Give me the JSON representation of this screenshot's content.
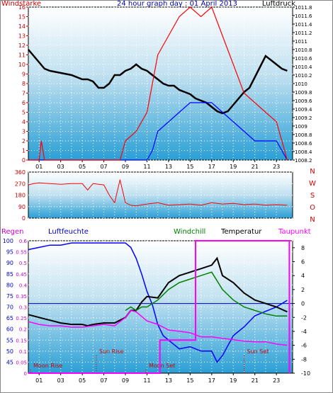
{
  "chart_data": [
    {
      "id": "wind-pressure",
      "type": "line",
      "title": "24 hour graph day : 01 April 2013",
      "left_label": "Windstärke",
      "right_label": "Luftdruck",
      "x_ticks": [
        "01",
        "03",
        "05",
        "07",
        "09",
        "11",
        "13",
        "15",
        "17",
        "19",
        "21",
        "23"
      ],
      "xlim": [
        0,
        24.5
      ],
      "left_axis": {
        "ylim": [
          0,
          16
        ],
        "ticks": [
          0,
          1,
          2,
          3,
          4,
          5,
          6,
          7,
          8,
          9,
          10,
          11,
          12,
          13,
          14,
          15,
          16
        ]
      },
      "right_axis": {
        "ylim": [
          1008.2,
          1011.8
        ],
        "ticks": [
          "1008.2",
          "1008.4",
          "1008.6",
          "1008.8",
          "1009",
          "1009.2",
          "1009.4",
          "1009.6",
          "1009.8",
          "1010",
          "1010.2",
          "1010.4",
          "1010.6",
          "1010.8",
          "1011",
          "1011.2",
          "1011.4",
          "1011.6",
          "1011.8"
        ]
      },
      "series": [
        {
          "color": "#000000",
          "axis": "right",
          "x": [
            0,
            0.5,
            1,
            1.5,
            2,
            3,
            4,
            5,
            5.5,
            6,
            6.5,
            7,
            7.5,
            8,
            8.5,
            9,
            9.5,
            10,
            10.5,
            11,
            11.5,
            12,
            12.5,
            13,
            13.5,
            14,
            14.5,
            15,
            15.5,
            16,
            16.5,
            17,
            17.5,
            18,
            18.5,
            19,
            19.5,
            20,
            20.5,
            21,
            21.5,
            22,
            22.5,
            23,
            23.5,
            24
          ],
          "y": [
            1010.8,
            1010.65,
            1010.5,
            1010.35,
            1010.3,
            1010.25,
            1010.2,
            1010.1,
            1010.1,
            1010.05,
            1009.9,
            1009.9,
            1010.0,
            1010.2,
            1010.2,
            1010.3,
            1010.35,
            1010.45,
            1010.35,
            1010.3,
            1010.2,
            1010.1,
            1010.0,
            1009.95,
            1009.95,
            1009.85,
            1009.8,
            1009.75,
            1009.65,
            1009.6,
            1009.55,
            1009.45,
            1009.35,
            1009.3,
            1009.35,
            1009.5,
            1009.65,
            1009.8,
            1009.9,
            1010.15,
            1010.4,
            1010.65,
            1010.55,
            1010.45,
            1010.35,
            1010.3
          ]
        },
        {
          "color": "#0000ff",
          "axis": "left",
          "x": [
            0,
            11,
            11.5,
            12,
            13,
            14,
            15,
            16,
            17,
            18,
            19,
            20,
            21,
            22,
            23,
            24
          ],
          "y": [
            0,
            0,
            1,
            3,
            4,
            5,
            6,
            6,
            6,
            5,
            4,
            3,
            2,
            2,
            2,
            0
          ]
        },
        {
          "color": "#ff0000",
          "axis": "left",
          "x": [
            0,
            1,
            1.2,
            1.5,
            8.5,
            9,
            10,
            11,
            11.5,
            12,
            13,
            14,
            15,
            16,
            17,
            18,
            19,
            20,
            21,
            22,
            23,
            24
          ],
          "y": [
            0,
            0,
            2,
            0,
            0,
            2,
            3,
            5,
            8,
            11,
            13,
            15,
            16,
            15,
            16,
            13,
            10,
            7,
            6,
            5,
            4,
            0
          ]
        }
      ]
    },
    {
      "id": "wind-direction",
      "type": "line",
      "x_ticks": [
        "01",
        "03",
        "05",
        "07",
        "09",
        "11",
        "13",
        "15",
        "17",
        "19",
        "21",
        "23"
      ],
      "xlim": [
        0,
        24.5
      ],
      "ylim": [
        0,
        360
      ],
      "y_ticks": [
        0,
        90,
        180,
        270,
        360
      ],
      "direction_labels": [
        "N",
        "W",
        "S",
        "O",
        "N"
      ],
      "series": [
        {
          "color": "#ff0000",
          "x": [
            0,
            0.5,
            1,
            2,
            3,
            4,
            5,
            5.5,
            6,
            7,
            7.5,
            8,
            8.5,
            9,
            9.5,
            10,
            11,
            12,
            13,
            14,
            15,
            16,
            17,
            18,
            19,
            20,
            21,
            22,
            23,
            24
          ],
          "y": [
            260,
            270,
            275,
            270,
            265,
            270,
            270,
            220,
            270,
            260,
            180,
            120,
            300,
            120,
            100,
            95,
            110,
            120,
            100,
            105,
            110,
            100,
            120,
            110,
            115,
            105,
            110,
            100,
            105,
            100
          ]
        }
      ]
    },
    {
      "id": "humidity-temp",
      "type": "line",
      "labels": {
        "regen": "Regen",
        "luftfeuchte": "Luftfeuchte",
        "windchill": "Windchill",
        "temperatur": "Temperatur",
        "taupunkt": "Taupunkt"
      },
      "x_ticks": [
        "01",
        "03",
        "05",
        "07",
        "09",
        "11",
        "13",
        "15",
        "17",
        "19",
        "21",
        "23"
      ],
      "xlim": [
        0,
        24.5
      ],
      "regen_axis": {
        "ylim": [
          0,
          0.6
        ],
        "ticks": [
          "0",
          "0.05",
          "0.1",
          "0.15",
          "0.2",
          "0.25",
          "0.3",
          "0.35",
          "0.4",
          "0.45",
          "0.5",
          "0.55",
          "0.6"
        ]
      },
      "humidity_axis": {
        "ylim": [
          40,
          100
        ],
        "ticks": [
          45,
          50,
          55,
          60,
          65,
          70,
          75,
          80,
          85,
          90,
          95,
          100
        ]
      },
      "temp_axis": {
        "ylim": [
          -10,
          9
        ],
        "ticks": [
          -10,
          -8,
          -6,
          -4,
          -2,
          0,
          2,
          4,
          6,
          8
        ]
      },
      "events": [
        {
          "label": "Moon Rise",
          "x": 0.2
        },
        {
          "label": "Sun Rise",
          "x": 6.3
        },
        {
          "label": "Moon Set",
          "x": 10.9
        },
        {
          "label": "Sun Set",
          "x": 20.0
        }
      ],
      "series": [
        {
          "color": "#0000ff",
          "axis": "humidity",
          "x": [
            0,
            1,
            2,
            3,
            4,
            5,
            6,
            7,
            8,
            9,
            9.5,
            10,
            10.5,
            11,
            11.5,
            12,
            12.5,
            13,
            14,
            15,
            16,
            17,
            17.5,
            18,
            19,
            20,
            21,
            22,
            23,
            24
          ],
          "y": [
            96,
            97,
            98,
            98,
            99,
            99,
            99,
            99,
            99,
            99,
            97,
            92,
            85,
            77,
            71,
            62,
            57,
            55,
            51,
            52,
            50,
            50,
            45,
            48,
            57,
            61,
            66,
            68,
            70,
            73
          ]
        },
        {
          "color": "#000000",
          "axis": "temp",
          "x": [
            0,
            1,
            2,
            3,
            4,
            5,
            5.5,
            6,
            7,
            8,
            9,
            9.5,
            10,
            10.5,
            11,
            12,
            13,
            14,
            15,
            16,
            17,
            17.5,
            18,
            19,
            20,
            21,
            22,
            23,
            24
          ],
          "y": [
            -1.6,
            -2.0,
            -2.4,
            -2.8,
            -3.0,
            -3.0,
            -3.2,
            -3.0,
            -2.8,
            -2.8,
            -2.0,
            -1.0,
            -1.0,
            0.2,
            1.0,
            0.8,
            3.0,
            4.0,
            4.5,
            5.0,
            5.5,
            6.5,
            4.0,
            3.0,
            1.5,
            0.5,
            0,
            -0.5,
            -1.2
          ]
        },
        {
          "color": "#008000",
          "axis": "temp",
          "x": [
            9,
            9.5,
            10,
            10.5,
            11,
            12,
            13,
            14,
            15,
            16,
            17,
            18,
            19,
            20,
            21,
            22,
            23,
            24
          ],
          "y": [
            -1.0,
            -0.5,
            -1.0,
            -0.5,
            -0.5,
            0.5,
            2.0,
            3.0,
            3.5,
            4.0,
            4.5,
            2.0,
            0.5,
            -0.5,
            -1.0,
            -1.5,
            -1.8,
            -1.8
          ]
        },
        {
          "color": "#ff00ff",
          "axis": "temp",
          "x": [
            0,
            1,
            2,
            3,
            4,
            5,
            6,
            7,
            8,
            9,
            9.5,
            10,
            11,
            12,
            13,
            14,
            15,
            16,
            17,
            18,
            19,
            20,
            21,
            22,
            23,
            24
          ],
          "y": [
            -2.6,
            -3.0,
            -3.2,
            -3.2,
            -3.4,
            -3.4,
            -3.2,
            -3.0,
            -3.2,
            -2.0,
            -1.0,
            -1.2,
            -2.5,
            -3.0,
            -3.8,
            -4.0,
            -4.2,
            -4.8,
            -4.8,
            -5.0,
            -5.2,
            -5.4,
            -5.5,
            -5.5,
            -5.8,
            -6.0
          ]
        },
        {
          "color": "#ff00ff",
          "axis": "regen",
          "step": true,
          "x": [
            0,
            12.2,
            12.2,
            15.5,
            15.5,
            24.2,
            24.2
          ],
          "y": [
            0,
            0,
            0.15,
            0.15,
            0.6,
            0.6,
            0
          ]
        }
      ]
    }
  ]
}
